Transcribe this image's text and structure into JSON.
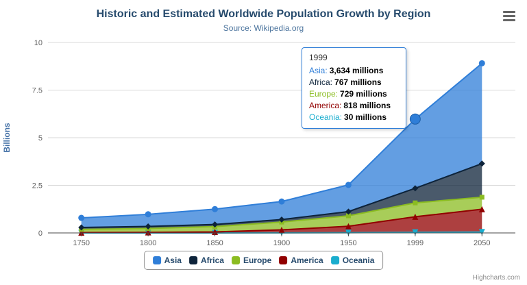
{
  "chart": {
    "title": "Historic and Estimated Worldwide Population Growth by Region",
    "subtitle": "Source: Wikipedia.org",
    "credit": "Highcharts.com"
  },
  "chart_data": {
    "type": "area",
    "stacked": true,
    "title": "Historic and Estimated Worldwide Population Growth by Region",
    "subtitle": "Source: Wikipedia.org",
    "categories": [
      "1750",
      "1800",
      "1850",
      "1900",
      "1950",
      "1999",
      "2050"
    ],
    "series": [
      {
        "name": "Asia",
        "color": "#2f7ed8",
        "marker": "circle",
        "values": [
          502,
          635,
          809,
          947,
          1402,
          3634,
          5268
        ]
      },
      {
        "name": "Africa",
        "color": "#0d233a",
        "marker": "diamond",
        "values": [
          106,
          107,
          111,
          133,
          221,
          767,
          1766
        ]
      },
      {
        "name": "Europe",
        "color": "#8bbc21",
        "marker": "square",
        "values": [
          163,
          203,
          276,
          408,
          547,
          729,
          628
        ]
      },
      {
        "name": "America",
        "color": "#910000",
        "marker": "triangle",
        "values": [
          18,
          31,
          54,
          156,
          339,
          818,
          1201
        ]
      },
      {
        "name": "Oceania",
        "color": "#1aadce",
        "marker": "triangle-down",
        "values": [
          2,
          2,
          2,
          6,
          13,
          30,
          46
        ]
      }
    ],
    "values_unit": "millions",
    "unit_divisor": 1000,
    "xlabel": "",
    "ylabel": "Billions",
    "yticks": [
      0,
      2.5,
      5,
      7.5,
      10
    ],
    "ylim": [
      0,
      10
    ],
    "grid": true,
    "legend_position": "bottom",
    "hover": {
      "series": "Asia",
      "category": "1999"
    }
  },
  "tooltip": {
    "header": "1999",
    "border_color": "#2f7ed8",
    "rows": [
      {
        "label": "Asia:",
        "value": "3,634 millions",
        "color": "#2f7ed8"
      },
      {
        "label": "Africa:",
        "value": "767 millions",
        "color": "#0d233a"
      },
      {
        "label": "Europe:",
        "value": "729 millions",
        "color": "#8bbc21"
      },
      {
        "label": "America:",
        "value": "818 millions",
        "color": "#910000"
      },
      {
        "label": "Oceania:",
        "value": "30 millions",
        "color": "#1aadce"
      }
    ]
  },
  "legend": {
    "items": [
      {
        "label": "Asia",
        "color": "#2f7ed8"
      },
      {
        "label": "Africa",
        "color": "#0d233a"
      },
      {
        "label": "Europe",
        "color": "#8bbc21"
      },
      {
        "label": "America",
        "color": "#910000"
      },
      {
        "label": "Oceania",
        "color": "#1aadce"
      }
    ]
  }
}
